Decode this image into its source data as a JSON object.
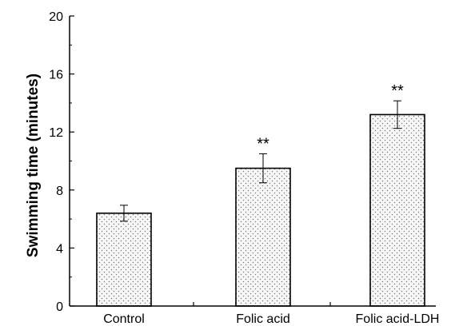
{
  "chart_data": {
    "type": "bar",
    "title": "",
    "xlabel": "",
    "ylabel": "Swimming time (minutes)",
    "ylim": [
      0,
      20
    ],
    "yticks": [
      0,
      4,
      8,
      12,
      16,
      20
    ],
    "grid": false,
    "categories": [
      "Control",
      "Folic acid",
      "Folic acid-LDH"
    ],
    "values": [
      6.4,
      9.5,
      13.2
    ],
    "errors": [
      0.55,
      1.0,
      0.95
    ],
    "annotations": [
      "",
      "**",
      "**"
    ],
    "bar_fill": "dotted",
    "colors": {
      "bar_fill": "#f7f7f7",
      "dot": "#7a7a7a",
      "stroke": "#000000"
    }
  }
}
